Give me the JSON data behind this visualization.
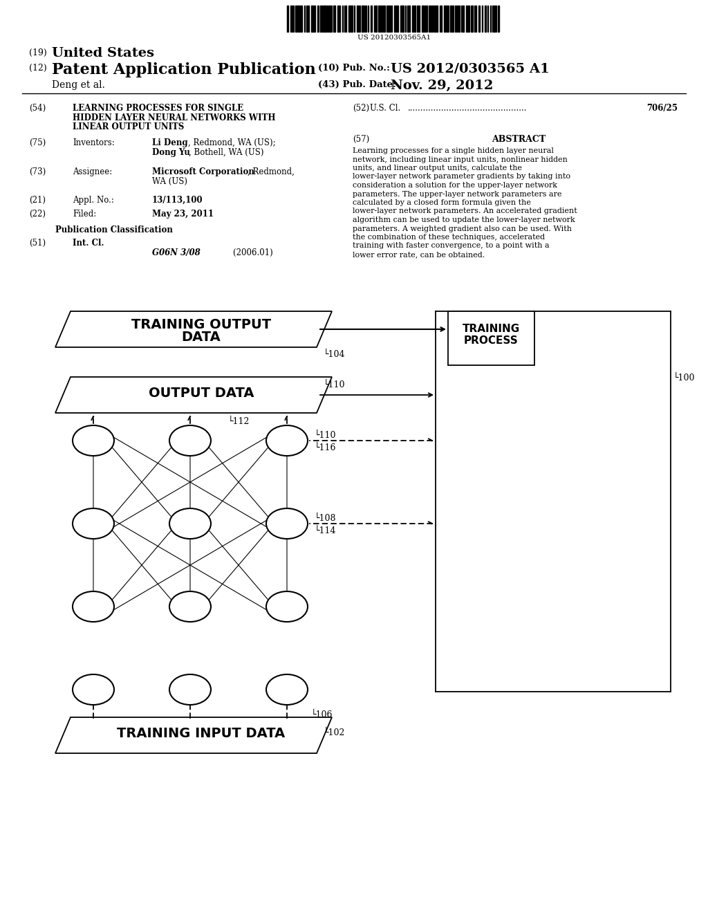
{
  "barcode_text": "US 20120303565A1",
  "bg_color": "#ffffff",
  "abstract_text": "Learning processes for a single hidden layer neural network, including linear input units, nonlinear hidden units, and linear output units, calculate the lower-layer network parameter gradients by taking into consideration a solution for the upper-layer network parameters. The upper-layer network parameters are calculated by a closed form formula given the lower-layer network parameters. An accelerated gradient algorithm can be used to update the lower-layer network parameters. A weighted gradient also can be used. With the combination of these techniques, accelerated training with faster convergence, to a point with a lower error rate, can be obtained."
}
